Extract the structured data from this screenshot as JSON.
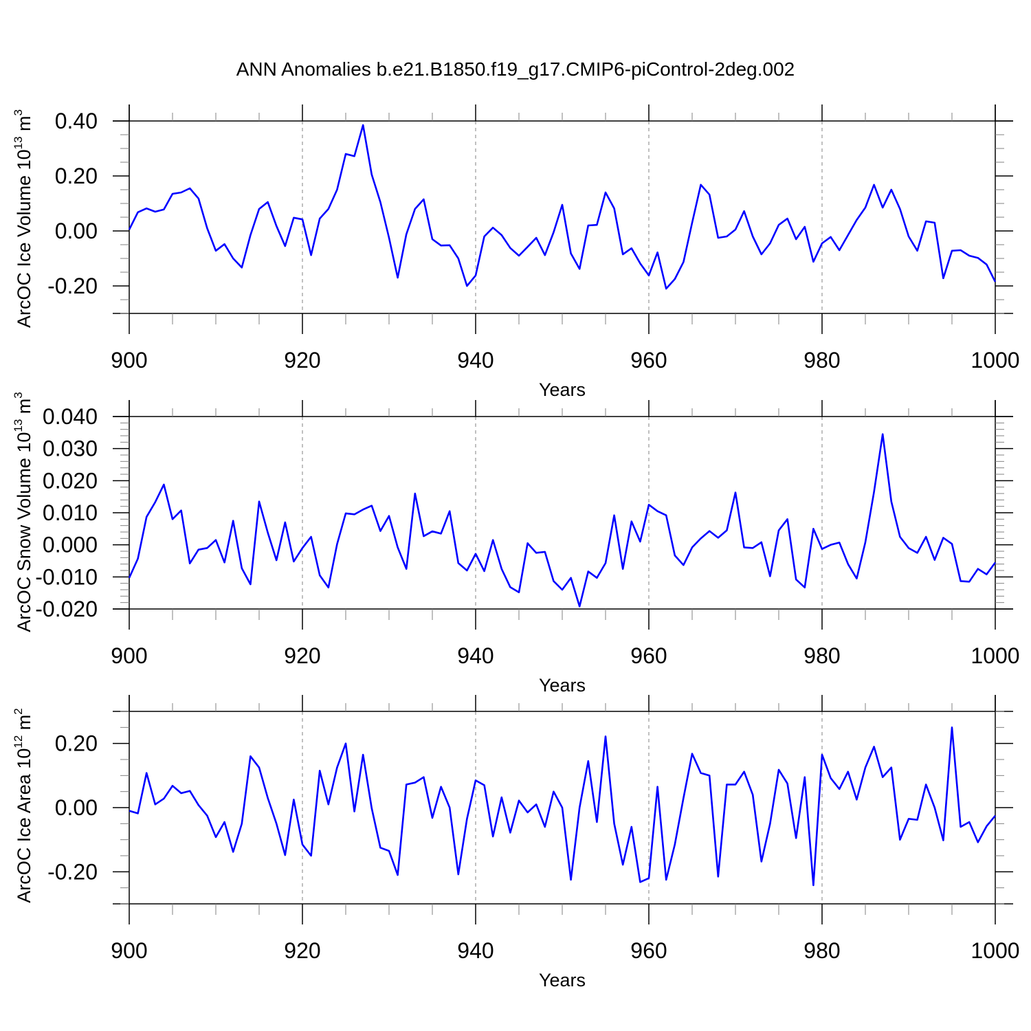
{
  "title": "ANN Anomalies b.e21.B1850.f19_g17.CMIP6-piControl-2deg.002",
  "colors": {
    "line": "#0000ff",
    "axis": "#000000",
    "grid": "#808080",
    "background": "#ffffff"
  },
  "chart_data": [
    {
      "type": "line",
      "ylabel": "ArcOC Ice Volume 10",
      "ylabel_exp": "13",
      "ylabel_unit": " m",
      "ylabel_unit_exp": "3",
      "xlabel": "Years",
      "xlim": [
        900,
        1000
      ],
      "ylim": [
        -0.3,
        0.4
      ],
      "yticks": [
        -0.2,
        0.0,
        0.2,
        0.4
      ],
      "ytick_labels": [
        "-0.20",
        "0.00",
        "0.20",
        "0.40"
      ],
      "yminor_step": 0.05,
      "xticks": [
        900,
        920,
        940,
        960,
        980,
        1000
      ],
      "xtick_labels": [
        "900",
        "920",
        "940",
        "960",
        "980",
        "1000"
      ],
      "x": [
        900,
        901,
        902,
        903,
        904,
        905,
        906,
        907,
        908,
        909,
        910,
        911,
        912,
        913,
        914,
        915,
        916,
        917,
        918,
        919,
        920,
        921,
        922,
        923,
        924,
        925,
        926,
        927,
        928,
        929,
        930,
        931,
        932,
        933,
        934,
        935,
        936,
        937,
        938,
        939,
        940,
        941,
        942,
        943,
        944,
        945,
        946,
        947,
        948,
        949,
        950,
        951,
        952,
        953,
        954,
        955,
        956,
        957,
        958,
        959,
        960,
        961,
        962,
        963,
        964,
        965,
        966,
        967,
        968,
        969,
        970,
        971,
        972,
        973,
        974,
        975,
        976,
        977,
        978,
        979,
        980,
        981,
        982,
        983,
        984,
        985,
        986,
        987,
        988,
        989,
        990,
        991,
        992,
        993,
        994,
        995,
        996,
        997,
        998,
        999,
        1000
      ],
      "series": [
        {
          "values": [
            0.005,
            0.068,
            0.082,
            0.07,
            0.078,
            0.135,
            0.14,
            0.155,
            0.118,
            0.01,
            -0.072,
            -0.048,
            -0.1,
            -0.133,
            -0.015,
            0.08,
            0.105,
            0.018,
            -0.055,
            0.048,
            0.042,
            -0.088,
            0.045,
            0.08,
            0.15,
            0.28,
            0.272,
            0.385,
            0.205,
            0.105,
            -0.025,
            -0.17,
            -0.012,
            0.08,
            0.115,
            -0.03,
            -0.053,
            -0.052,
            -0.1,
            -0.2,
            -0.162,
            -0.02,
            0.012,
            -0.015,
            -0.062,
            -0.09,
            -0.058,
            -0.025,
            -0.088,
            -0.005,
            0.095,
            -0.082,
            -0.138,
            0.02,
            0.022,
            0.14,
            0.082,
            -0.085,
            -0.063,
            -0.118,
            -0.162,
            -0.078,
            -0.21,
            -0.175,
            -0.113,
            0.03,
            0.168,
            0.132,
            -0.025,
            -0.02,
            0.005,
            0.072,
            -0.02,
            -0.085,
            -0.045,
            0.022,
            0.045,
            -0.03,
            0.015,
            -0.112,
            -0.045,
            -0.022,
            -0.07,
            -0.015,
            0.04,
            0.085,
            0.168,
            0.085,
            0.15,
            0.08,
            -0.02,
            -0.072,
            0.035,
            0.03,
            -0.172,
            -0.072,
            -0.07,
            -0.09,
            -0.098,
            -0.122,
            -0.185
          ]
        }
      ]
    },
    {
      "type": "line",
      "ylabel": "ArcOC Snow Volume 10",
      "ylabel_exp": "13",
      "ylabel_unit": " m",
      "ylabel_unit_exp": "3",
      "xlabel": "Years",
      "xlim": [
        900,
        1000
      ],
      "ylim": [
        -0.02,
        0.04
      ],
      "yticks": [
        -0.02,
        -0.01,
        0.0,
        0.01,
        0.02,
        0.03,
        0.04
      ],
      "ytick_labels": [
        "-0.020",
        "-0.010",
        "0.000",
        "0.010",
        "0.020",
        "0.030",
        "0.040"
      ],
      "yminor_step": 0.002,
      "xticks": [
        900,
        920,
        940,
        960,
        980,
        1000
      ],
      "xtick_labels": [
        "900",
        "920",
        "940",
        "960",
        "980",
        "1000"
      ],
      "x": [
        900,
        901,
        902,
        903,
        904,
        905,
        906,
        907,
        908,
        909,
        910,
        911,
        912,
        913,
        914,
        915,
        916,
        917,
        918,
        919,
        920,
        921,
        922,
        923,
        924,
        925,
        926,
        927,
        928,
        929,
        930,
        931,
        932,
        933,
        934,
        935,
        936,
        937,
        938,
        939,
        940,
        941,
        942,
        943,
        944,
        945,
        946,
        947,
        948,
        949,
        950,
        951,
        952,
        953,
        954,
        955,
        956,
        957,
        958,
        959,
        960,
        961,
        962,
        963,
        964,
        965,
        966,
        967,
        968,
        969,
        970,
        971,
        972,
        973,
        974,
        975,
        976,
        977,
        978,
        979,
        980,
        981,
        982,
        983,
        984,
        985,
        986,
        987,
        988,
        989,
        990,
        991,
        992,
        993,
        994,
        995,
        996,
        997,
        998,
        999,
        1000
      ],
      "series": [
        {
          "values": [
            -0.0103,
            -0.0043,
            0.0087,
            0.0133,
            0.0188,
            0.008,
            0.0107,
            -0.0058,
            -0.0015,
            -0.001,
            0.0015,
            -0.0055,
            0.0075,
            -0.0073,
            -0.0123,
            0.0135,
            0.0038,
            -0.0048,
            0.007,
            -0.0052,
            -0.001,
            0.0025,
            -0.0095,
            -0.0133,
            0.0002,
            0.0098,
            0.0095,
            0.011,
            0.0122,
            0.0043,
            0.009,
            -0.0008,
            -0.0075,
            0.016,
            0.0027,
            0.0042,
            0.0035,
            0.0105,
            -0.0057,
            -0.008,
            -0.0028,
            -0.0082,
            0.0015,
            -0.0075,
            -0.0132,
            -0.0148,
            0.0005,
            -0.0025,
            -0.0022,
            -0.0113,
            -0.014,
            -0.0103,
            -0.0192,
            -0.0083,
            -0.0103,
            -0.0057,
            0.0092,
            -0.0075,
            0.0073,
            0.001,
            0.0125,
            0.0105,
            0.0092,
            -0.0033,
            -0.0063,
            -0.0008,
            0.002,
            0.0043,
            0.0022,
            0.0045,
            0.0163,
            -0.0008,
            -0.001,
            0.0008,
            -0.0098,
            0.0045,
            0.008,
            -0.0108,
            -0.0133,
            0.005,
            -0.0013,
            0.0,
            0.0007,
            -0.006,
            -0.0105,
            0.0008,
            0.0165,
            0.0345,
            0.0135,
            0.0025,
            -0.001,
            -0.0025,
            0.0025,
            -0.0047,
            0.0022,
            0.0003,
            -0.0113,
            -0.0115,
            -0.0075,
            -0.0092,
            -0.0055
          ]
        }
      ]
    },
    {
      "type": "line",
      "ylabel": "ArcOC Ice Area 10",
      "ylabel_exp": "12",
      "ylabel_unit": " m",
      "ylabel_unit_exp": "2",
      "xlabel": "Years",
      "xlim": [
        900,
        1000
      ],
      "ylim": [
        -0.3,
        0.3
      ],
      "yticks": [
        -0.2,
        0.0,
        0.2
      ],
      "ytick_labels": [
        "-0.20",
        "0.00",
        "0.20"
      ],
      "yminor_step": 0.05,
      "xticks": [
        900,
        920,
        940,
        960,
        980,
        1000
      ],
      "xtick_labels": [
        "900",
        "920",
        "940",
        "960",
        "980",
        "1000"
      ],
      "x": [
        900,
        901,
        902,
        903,
        904,
        905,
        906,
        907,
        908,
        909,
        910,
        911,
        912,
        913,
        914,
        915,
        916,
        917,
        918,
        919,
        920,
        921,
        922,
        923,
        924,
        925,
        926,
        927,
        928,
        929,
        930,
        931,
        932,
        933,
        934,
        935,
        936,
        937,
        938,
        939,
        940,
        941,
        942,
        943,
        944,
        945,
        946,
        947,
        948,
        949,
        950,
        951,
        952,
        953,
        954,
        955,
        956,
        957,
        958,
        959,
        960,
        961,
        962,
        963,
        964,
        965,
        966,
        967,
        968,
        969,
        970,
        971,
        972,
        973,
        974,
        975,
        976,
        977,
        978,
        979,
        980,
        981,
        982,
        983,
        984,
        985,
        986,
        987,
        988,
        989,
        990,
        991,
        992,
        993,
        994,
        995,
        996,
        997,
        998,
        999,
        1000
      ],
      "series": [
        {
          "values": [
            -0.01,
            -0.018,
            0.108,
            0.01,
            0.028,
            0.068,
            0.045,
            0.052,
            0.008,
            -0.025,
            -0.092,
            -0.045,
            -0.138,
            -0.05,
            0.16,
            0.125,
            0.03,
            -0.05,
            -0.148,
            0.025,
            -0.115,
            -0.15,
            0.115,
            0.01,
            0.125,
            0.2,
            -0.012,
            0.165,
            -0.002,
            -0.125,
            -0.135,
            -0.21,
            0.072,
            0.078,
            0.095,
            -0.032,
            0.065,
            0.0,
            -0.208,
            -0.035,
            0.085,
            0.07,
            -0.09,
            0.032,
            -0.078,
            0.022,
            -0.015,
            0.01,
            -0.06,
            0.05,
            0.0,
            -0.225,
            0.0,
            0.145,
            -0.045,
            0.222,
            -0.05,
            -0.178,
            -0.06,
            -0.232,
            -0.22,
            0.065,
            -0.225,
            -0.115,
            0.03,
            0.168,
            0.108,
            0.1,
            -0.215,
            0.072,
            0.072,
            0.112,
            0.04,
            -0.168,
            -0.05,
            0.118,
            0.075,
            -0.095,
            0.095,
            -0.242,
            0.165,
            0.092,
            0.058,
            0.112,
            0.025,
            0.125,
            0.19,
            0.095,
            0.125,
            -0.1,
            -0.035,
            -0.038,
            0.072,
            0.0,
            -0.102,
            0.25,
            -0.06,
            -0.045,
            -0.108,
            -0.058,
            -0.025
          ]
        }
      ]
    }
  ]
}
